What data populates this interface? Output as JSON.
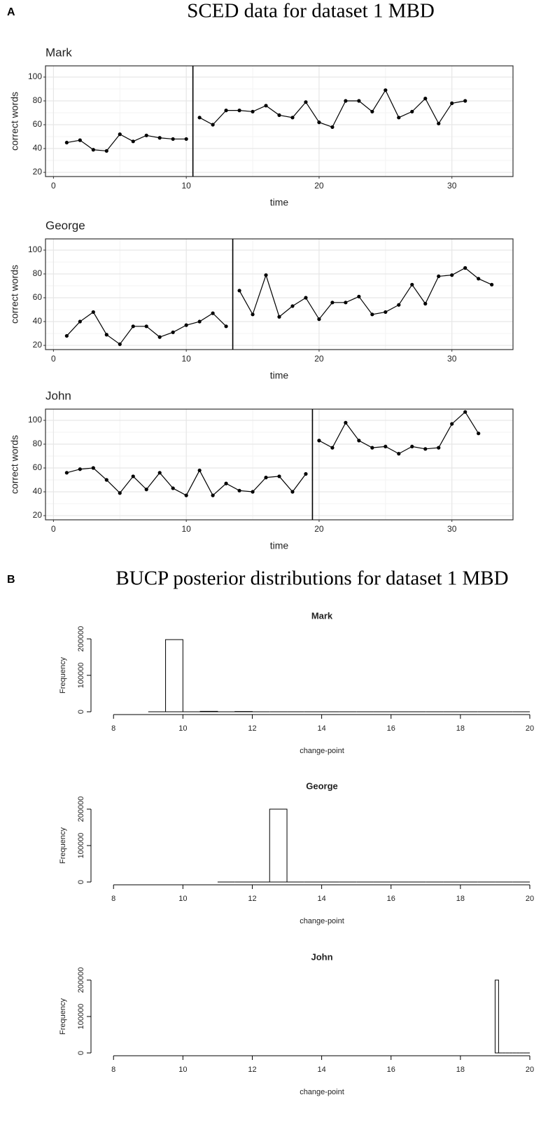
{
  "panels": [
    {
      "label": "A",
      "title": "SCED data for dataset 1 MBD"
    },
    {
      "label": "B",
      "title": "BUCP posterior distributions for dataset 1 MBD"
    }
  ],
  "chart_data": [
    {
      "type": "line",
      "title": "Mark",
      "xlabel": "time",
      "ylabel": "correct words",
      "color": "#000000",
      "grid": true,
      "phases": [
        {
          "x": [
            1,
            2,
            3,
            4,
            5,
            6,
            7,
            8,
            9,
            10
          ],
          "values": [
            45,
            47,
            39,
            38,
            52,
            46,
            51,
            49,
            48,
            48
          ]
        },
        {
          "x": [
            11,
            12,
            13,
            14,
            15,
            16,
            17,
            18,
            19,
            20,
            21,
            22,
            23,
            24,
            25,
            26,
            27,
            28,
            29,
            30,
            31
          ],
          "values": [
            66,
            60,
            72,
            72,
            71,
            76,
            68,
            66,
            79,
            62,
            58,
            80,
            80,
            71,
            89,
            66,
            71,
            82,
            61,
            78,
            80
          ]
        }
      ],
      "phase_change": 10.5,
      "xlim": [
        -0.6,
        34.6
      ],
      "ylim": [
        16.5,
        109.4
      ],
      "xticks": [
        0,
        10,
        20,
        30
      ],
      "yticks": [
        20,
        40,
        60,
        80,
        100
      ]
    },
    {
      "type": "line",
      "title": "George",
      "xlabel": "time",
      "ylabel": "correct words",
      "color": "#000000",
      "grid": true,
      "phases": [
        {
          "x": [
            1,
            2,
            3,
            4,
            5,
            6,
            7,
            8,
            9,
            10,
            11,
            12,
            13
          ],
          "values": [
            28,
            40,
            48,
            29,
            21,
            36,
            36,
            27,
            31,
            37,
            40,
            47,
            36
          ]
        },
        {
          "x": [
            14,
            15,
            16,
            17,
            18,
            19,
            20,
            21,
            22,
            23,
            24,
            25,
            26,
            27,
            28,
            29,
            30,
            31,
            32,
            33
          ],
          "values": [
            66,
            46,
            79,
            44,
            53,
            60,
            42,
            56,
            56,
            61,
            46,
            48,
            54,
            71,
            55,
            78,
            79,
            85,
            76,
            71
          ]
        }
      ],
      "phase_change": 13.5,
      "xlim": [
        -0.6,
        34.6
      ],
      "ylim": [
        16.5,
        109.4
      ],
      "xticks": [
        0,
        10,
        20,
        30
      ],
      "yticks": [
        20,
        40,
        60,
        80,
        100
      ]
    },
    {
      "type": "line",
      "title": "John",
      "xlabel": "time",
      "ylabel": "correct words",
      "color": "#000000",
      "grid": true,
      "phases": [
        {
          "x": [
            1,
            2,
            3,
            4,
            5,
            6,
            7,
            8,
            9,
            10,
            11,
            12,
            13,
            14,
            15,
            16,
            17,
            18,
            19
          ],
          "values": [
            56,
            59,
            60,
            50,
            39,
            53,
            42,
            56,
            43,
            37,
            58,
            37,
            47,
            41,
            40,
            52,
            53,
            40,
            55
          ]
        },
        {
          "x": [
            20,
            21,
            22,
            23,
            24,
            25,
            26,
            27,
            28,
            29,
            30,
            31,
            32
          ],
          "values": [
            83,
            77,
            98,
            83,
            77,
            78,
            72,
            78,
            76,
            77,
            97,
            107,
            89
          ]
        }
      ],
      "phase_change": 19.5,
      "xlim": [
        -0.6,
        34.6
      ],
      "ylim": [
        16.5,
        109.4
      ],
      "xticks": [
        0,
        10,
        20,
        30
      ],
      "yticks": [
        20,
        40,
        60,
        80,
        100
      ]
    },
    {
      "type": "histogram",
      "title": "Mark",
      "xlabel": "change-point",
      "ylabel": "Frequency",
      "color": "#000000",
      "bins": [
        9,
        9.5,
        10,
        10.5,
        11,
        11.5,
        12,
        12.5,
        13,
        13.5,
        14,
        14.5,
        15,
        15.5,
        16,
        16.5,
        17,
        17.5,
        18,
        18.5,
        19,
        19.5,
        20
      ],
      "values": [
        0,
        198000,
        0,
        1200,
        0,
        800,
        0,
        0,
        0,
        0,
        0,
        0,
        0,
        0,
        0,
        0,
        0,
        0,
        0,
        0,
        0,
        0
      ],
      "xlim": [
        7.35,
        20
      ],
      "ylim": [
        0,
        200000
      ],
      "xticks": [
        8,
        10,
        12,
        14,
        16,
        18,
        20
      ],
      "yticks": [
        0,
        100000,
        200000
      ]
    },
    {
      "type": "histogram",
      "title": "George",
      "xlabel": "change-point",
      "ylabel": "Frequency",
      "color": "#000000",
      "bins": [
        11,
        11.5,
        12,
        12.5,
        13,
        13.5,
        14,
        14.5,
        15,
        15.5,
        16,
        16.5,
        17,
        17.5,
        18,
        18.5,
        19,
        19.5,
        20
      ],
      "values": [
        0,
        0,
        0,
        200000,
        0,
        0,
        0,
        0,
        0,
        0,
        0,
        0,
        0,
        0,
        0,
        0,
        0,
        0
      ],
      "xlim": [
        7.35,
        20
      ],
      "ylim": [
        0,
        200000
      ],
      "xticks": [
        8,
        10,
        12,
        14,
        16,
        18,
        20
      ],
      "yticks": [
        0,
        100000,
        200000
      ]
    },
    {
      "type": "histogram",
      "title": "John",
      "xlabel": "change-point",
      "ylabel": "Frequency",
      "color": "#000000",
      "bins": [
        19,
        19.1,
        19.2,
        19.3,
        19.4,
        19.5,
        19.6,
        19.7,
        19.8,
        19.9,
        20
      ],
      "values": [
        200000,
        0,
        0,
        0,
        0,
        0,
        0,
        0,
        0,
        0
      ],
      "xlim": [
        7.35,
        20
      ],
      "ylim": [
        0,
        200000
      ],
      "xticks": [
        8,
        10,
        12,
        14,
        16,
        18,
        20
      ],
      "yticks": [
        0,
        100000,
        200000
      ]
    }
  ]
}
